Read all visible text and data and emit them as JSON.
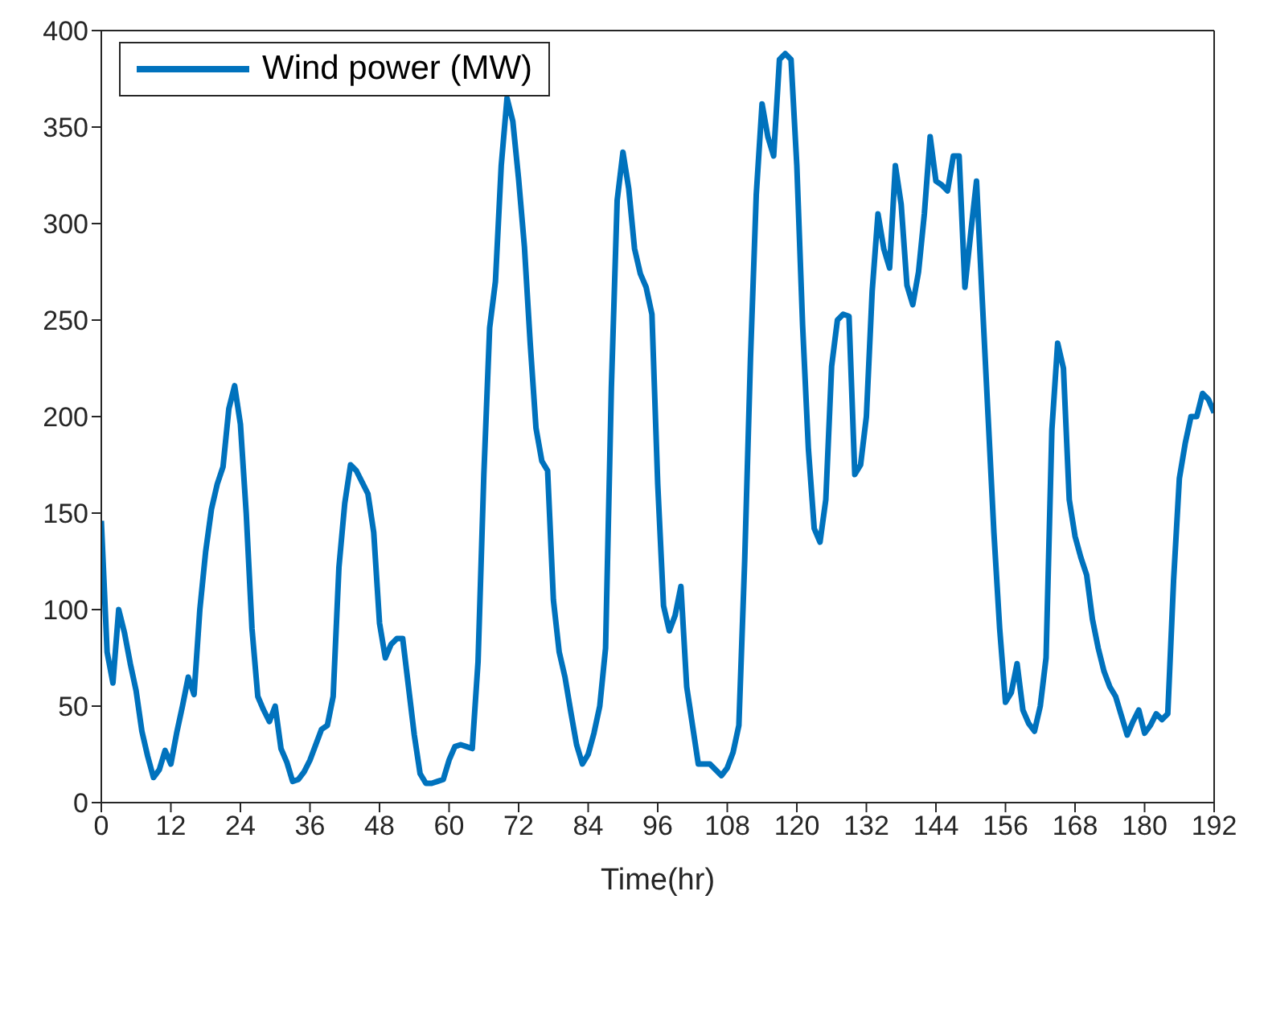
{
  "chart_data": {
    "type": "line",
    "xlabel": "Time(hr)",
    "xlim": [
      0,
      192
    ],
    "xticks": [
      0,
      12,
      24,
      36,
      48,
      60,
      72,
      84,
      96,
      108,
      120,
      132,
      144,
      156,
      168,
      180,
      192
    ],
    "ylim": [
      0,
      400
    ],
    "yticks": [
      0,
      50,
      100,
      150,
      200,
      250,
      300,
      350,
      400
    ],
    "grid": false,
    "legend": "top left",
    "marker": "none",
    "line_style": "solid",
    "x": [
      0,
      1,
      2,
      3,
      4,
      5,
      6,
      7,
      8,
      9,
      10,
      11,
      12,
      13,
      14,
      15,
      16,
      17,
      18,
      19,
      20,
      21,
      22,
      23,
      24,
      25,
      26,
      27,
      28,
      29,
      30,
      31,
      32,
      33,
      34,
      35,
      36,
      37,
      38,
      39,
      40,
      41,
      42,
      43,
      44,
      45,
      46,
      47,
      48,
      49,
      50,
      51,
      52,
      53,
      54,
      55,
      56,
      57,
      58,
      59,
      60,
      61,
      62,
      63,
      64,
      65,
      66,
      67,
      68,
      69,
      70,
      71,
      72,
      73,
      74,
      75,
      76,
      77,
      78,
      79,
      80,
      81,
      82,
      83,
      84,
      85,
      86,
      87,
      88,
      89,
      90,
      91,
      92,
      93,
      94,
      95,
      96,
      97,
      98,
      99,
      100,
      101,
      102,
      103,
      104,
      105,
      106,
      107,
      108,
      109,
      110,
      111,
      112,
      113,
      114,
      115,
      116,
      117,
      118,
      119,
      120,
      121,
      122,
      123,
      124,
      125,
      126,
      127,
      128,
      129,
      130,
      131,
      132,
      133,
      134,
      135,
      136,
      137,
      138,
      139,
      140,
      141,
      142,
      143,
      144,
      145,
      146,
      147,
      148,
      149,
      150,
      151,
      152,
      153,
      154,
      155,
      156,
      157,
      158,
      159,
      160,
      161,
      162,
      163,
      164,
      165,
      166,
      167,
      168,
      169,
      170,
      171,
      172,
      173,
      174,
      175,
      176,
      177,
      178,
      179,
      180,
      181,
      182,
      183,
      184,
      185,
      186,
      187,
      188,
      189,
      190,
      191,
      192
    ],
    "series": [
      {
        "name": "Wind power (MW)",
        "color": "#0072bd",
        "values": [
          146,
          78,
          62,
          100,
          88,
          72,
          58,
          37,
          24,
          13,
          17,
          27,
          20,
          36,
          50,
          65,
          56,
          100,
          130,
          152,
          165,
          174,
          204,
          216,
          196,
          150,
          90,
          55,
          48,
          42,
          50,
          28,
          21,
          11,
          12,
          16,
          22,
          30,
          38,
          40,
          55,
          122,
          155,
          175,
          172,
          166,
          160,
          140,
          93,
          75,
          82,
          85,
          85,
          60,
          35,
          15,
          10,
          10,
          11,
          12,
          22,
          29,
          30,
          29,
          28,
          73,
          170,
          246,
          270,
          330,
          365,
          353,
          323,
          288,
          238,
          194,
          177,
          172,
          105,
          78,
          65,
          47,
          30,
          20,
          25,
          36,
          50,
          80,
          215,
          312,
          337,
          318,
          287,
          274,
          267,
          253,
          165,
          102,
          89,
          97,
          112,
          60,
          40,
          20,
          20,
          20,
          17,
          14,
          18,
          26,
          40,
          125,
          230,
          315,
          362,
          345,
          335,
          385,
          388,
          385,
          330,
          247,
          183,
          142,
          135,
          157,
          226,
          250,
          253,
          252,
          170,
          175,
          200,
          265,
          305,
          287,
          277,
          330,
          310,
          268,
          258,
          275,
          305,
          345,
          322,
          320,
          317,
          335,
          335,
          267,
          295,
          322,
          260,
          200,
          140,
          90,
          52,
          57,
          72,
          48,
          41,
          37,
          50,
          75,
          193,
          238,
          225,
          157,
          138,
          127,
          118,
          95,
          80,
          68,
          60,
          55,
          45,
          35,
          42,
          48,
          36,
          40,
          46,
          43,
          46,
          115,
          168,
          186,
          200,
          200,
          212,
          209,
          202
        ]
      }
    ]
  }
}
